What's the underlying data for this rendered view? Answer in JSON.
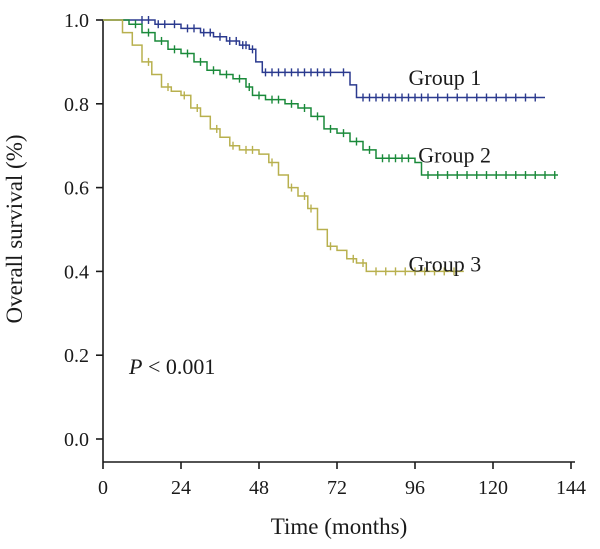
{
  "chart_data": {
    "type": "line",
    "step": true,
    "xlabel": "Time (months)",
    "ylabel": "Overall survival (%)",
    "xlim": [
      0,
      144
    ],
    "ylim": [
      0,
      1.0
    ],
    "xticks": [
      0,
      24,
      48,
      72,
      96,
      120,
      144
    ],
    "xtick_labels": [
      "0",
      "24",
      "48",
      "72",
      "96",
      "120",
      "144"
    ],
    "yticks": [
      0.0,
      0.2,
      0.4,
      0.6,
      0.8,
      1.0
    ],
    "ytick_labels": [
      "0.0",
      "0.2",
      "0.4",
      "0.6",
      "0.8",
      "1.0"
    ],
    "grid": false,
    "annotation": {
      "italic": "P",
      "rest": " < 0.001",
      "x": 8,
      "y": 0.155
    },
    "series": [
      {
        "name": "Group 1",
        "color": "#2b3a8f",
        "label_pos": {
          "x": 94,
          "y": 0.845
        },
        "points": [
          [
            0,
            1.0
          ],
          [
            10,
            1.0
          ],
          [
            16,
            0.99
          ],
          [
            24,
            0.98
          ],
          [
            30,
            0.97
          ],
          [
            34,
            0.96
          ],
          [
            38,
            0.95
          ],
          [
            42,
            0.94
          ],
          [
            45,
            0.93
          ],
          [
            47,
            0.9
          ],
          [
            49,
            0.875
          ],
          [
            72,
            0.875
          ],
          [
            76,
            0.845
          ],
          [
            78,
            0.815
          ],
          [
            136,
            0.815
          ]
        ],
        "censor": [
          12,
          14,
          17,
          19,
          22,
          26,
          28,
          31,
          33,
          36,
          39,
          41,
          43,
          44,
          46,
          50,
          52,
          54,
          56,
          58,
          60,
          62,
          64,
          66,
          68,
          70,
          74,
          80,
          82,
          84,
          86,
          88,
          90,
          92,
          94,
          96,
          98,
          100,
          103,
          106,
          109,
          112,
          115,
          118,
          121,
          124,
          127,
          130,
          133
        ]
      },
      {
        "name": "Group 2",
        "color": "#1a8a3a",
        "label_pos": {
          "x": 97,
          "y": 0.66
        },
        "points": [
          [
            0,
            1.0
          ],
          [
            8,
            0.99
          ],
          [
            12,
            0.97
          ],
          [
            16,
            0.95
          ],
          [
            20,
            0.93
          ],
          [
            24,
            0.92
          ],
          [
            28,
            0.9
          ],
          [
            32,
            0.88
          ],
          [
            36,
            0.87
          ],
          [
            40,
            0.86
          ],
          [
            44,
            0.84
          ],
          [
            46,
            0.82
          ],
          [
            50,
            0.81
          ],
          [
            56,
            0.8
          ],
          [
            60,
            0.79
          ],
          [
            64,
            0.77
          ],
          [
            68,
            0.74
          ],
          [
            72,
            0.73
          ],
          [
            76,
            0.71
          ],
          [
            80,
            0.69
          ],
          [
            84,
            0.67
          ],
          [
            96,
            0.66
          ],
          [
            98,
            0.63
          ],
          [
            140,
            0.63
          ]
        ],
        "censor": [
          10,
          14,
          18,
          22,
          26,
          30,
          34,
          38,
          42,
          45,
          48,
          52,
          54,
          58,
          62,
          66,
          70,
          74,
          78,
          82,
          86,
          88,
          90,
          92,
          94,
          100,
          103,
          106,
          109,
          112,
          115,
          118,
          121,
          124,
          127,
          130,
          133,
          136,
          139
        ]
      },
      {
        "name": "Group 3",
        "color": "#b8b04e",
        "label_pos": {
          "x": 94,
          "y": 0.4
        },
        "points": [
          [
            0,
            1.0
          ],
          [
            6,
            0.97
          ],
          [
            9,
            0.94
          ],
          [
            12,
            0.9
          ],
          [
            15,
            0.87
          ],
          [
            18,
            0.84
          ],
          [
            21,
            0.83
          ],
          [
            24,
            0.82
          ],
          [
            27,
            0.79
          ],
          [
            30,
            0.77
          ],
          [
            33,
            0.74
          ],
          [
            36,
            0.72
          ],
          [
            39,
            0.7
          ],
          [
            42,
            0.69
          ],
          [
            48,
            0.68
          ],
          [
            51,
            0.66
          ],
          [
            54,
            0.63
          ],
          [
            57,
            0.6
          ],
          [
            60,
            0.58
          ],
          [
            63,
            0.55
          ],
          [
            66,
            0.5
          ],
          [
            69,
            0.46
          ],
          [
            72,
            0.45
          ],
          [
            75,
            0.43
          ],
          [
            78,
            0.42
          ],
          [
            81,
            0.4
          ],
          [
            111,
            0.4
          ]
        ],
        "censor": [
          14,
          20,
          25,
          29,
          35,
          40,
          44,
          46,
          52,
          58,
          62,
          64,
          70,
          77,
          80,
          84,
          87,
          90,
          93,
          96,
          99,
          102,
          105,
          108
        ]
      }
    ]
  }
}
